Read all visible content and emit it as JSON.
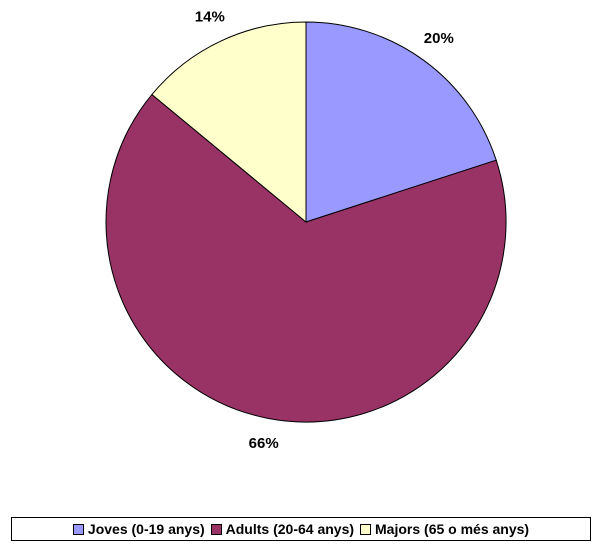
{
  "chart_data": {
    "type": "pie",
    "categories": [
      "Joves (0-19 anys)",
      "Adults (20-64 anys)",
      "Majors (65 o més anys)"
    ],
    "values": [
      20,
      66,
      14
    ],
    "value_labels": [
      "20%",
      "66%",
      "14%"
    ],
    "colors": [
      "#9999ff",
      "#993366",
      "#ffffcc"
    ],
    "start": "12 o'clock",
    "direction": "clockwise",
    "legend_position": "bottom"
  }
}
